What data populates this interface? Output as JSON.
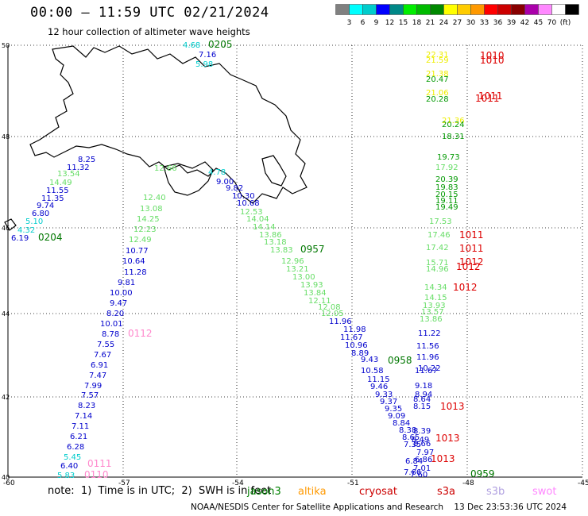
{
  "header": {
    "title": "00:00 – 11:59 UTC 02/21/2024",
    "subtitle": "12 hour collection of altimeter wave heights"
  },
  "colorbar": {
    "colors": [
      "#808080",
      "#00ffff",
      "#00cccc",
      "#0000ff",
      "#008888",
      "#00ee00",
      "#00bb00",
      "#008800",
      "#ffff00",
      "#ffcc00",
      "#ff9900",
      "#ff0000",
      "#cc0000",
      "#880000",
      "#aa00aa",
      "#ff88ff",
      "#ffffff",
      "#000000"
    ],
    "labels": [
      "3",
      "6",
      "9",
      "12",
      "15",
      "18",
      "21",
      "24",
      "27",
      "30",
      "33",
      "36",
      "39",
      "42",
      "45",
      "70",
      "(ft)"
    ]
  },
  "axes": {
    "lat_ticks": [
      "50",
      "48",
      "46",
      "44",
      "42",
      "40"
    ],
    "lon_ticks": [
      "-60",
      "-57",
      "-54",
      "-51",
      "-48",
      "-45"
    ]
  },
  "tracks": {
    "jason3": {
      "values": [
        "4.68",
        "7.16",
        "5.98",
        "8.25",
        "11.32",
        "13.54",
        "14.49",
        "11.55",
        "11.35",
        "9.74",
        "6.80",
        "5.10",
        "4.32",
        "6.19"
      ],
      "times": [
        "0205",
        "0204"
      ]
    },
    "altika": {
      "values": [
        "12.66",
        "12.40",
        "13.08",
        "14.25",
        "12.23",
        "12.49",
        "10.77",
        "10.64",
        "11.28",
        "9.81",
        "10.00",
        "9.47",
        "8.20",
        "10.01",
        "8.78",
        "7.55",
        "7.67",
        "6.91",
        "7.47",
        "7.99",
        "7.57",
        "8.23",
        "7.14",
        "7.11",
        "6.21",
        "6.28",
        "5.45",
        "6.40",
        "5.83"
      ],
      "times": [
        "0112",
        "0111",
        "0110"
      ]
    },
    "cryosat": {
      "values": [
        "4.78",
        "9.00",
        "9.82",
        "10.30",
        "10.68",
        "12.53",
        "14.04",
        "14.14",
        "13.86",
        "13.18",
        "13.83",
        "12.96",
        "13.21",
        "13.00",
        "13.93",
        "13.84",
        "12.11",
        "12.08",
        "12.05",
        "11.96",
        "11.98",
        "11.67",
        "10.96",
        "8.89",
        "9.43",
        "10.58",
        "11.15",
        "9.46",
        "9.33",
        "9.37",
        "9.35",
        "9.09",
        "8.84",
        "8.38",
        "8.65",
        "7.35",
        "6.84",
        "7.66"
      ],
      "times": [
        "0957",
        "0958"
      ]
    },
    "s3a": {
      "values": [
        "22.31",
        "21.59",
        "21.38",
        "20.47",
        "21.06",
        "20.28",
        "21.36",
        "20.24",
        "18.31",
        "19.73",
        "17.92",
        "20.39",
        "19.83",
        "20.15",
        "19.11",
        "19.49",
        "17.53",
        "17.46",
        "17.42",
        "15.71",
        "14.96",
        "14.34",
        "14.15",
        "13.93",
        "13.57",
        "13.86",
        "11.22",
        "11.56",
        "11.96",
        "10.22",
        "11.67",
        "9.18",
        "8.94",
        "8.64",
        "8.15",
        "8.39",
        "8.49",
        "8.66",
        "7.97",
        "6.86",
        "7.01",
        "7.60"
      ],
      "times": [
        "1010",
        "1010",
        "1011",
        "1011",
        "1011",
        "1011",
        "1012",
        "1012",
        "1012",
        "1013",
        "1013",
        "1013",
        "0959"
      ]
    }
  },
  "note": {
    "text": "note:  1)  Time is in UTC;  2)  SWH is in feet"
  },
  "legend": {
    "jason3": {
      "label": "jason3",
      "color": "#008000"
    },
    "altika": {
      "label": "altika",
      "color": "#ff9900"
    },
    "cryosat": {
      "label": "cryosat",
      "color": "#cc0000"
    },
    "s3a": {
      "label": "s3a",
      "color": "#cc0000"
    },
    "s3b": {
      "label": "s3b",
      "color": "#b0a0e0"
    },
    "swot": {
      "label": "swot",
      "color": "#ff88ff"
    }
  },
  "footer": {
    "text": "NOAA/NESDIS Center for Satellite Applications and Research    13 Dec 23:53:36 UTC 2024"
  }
}
